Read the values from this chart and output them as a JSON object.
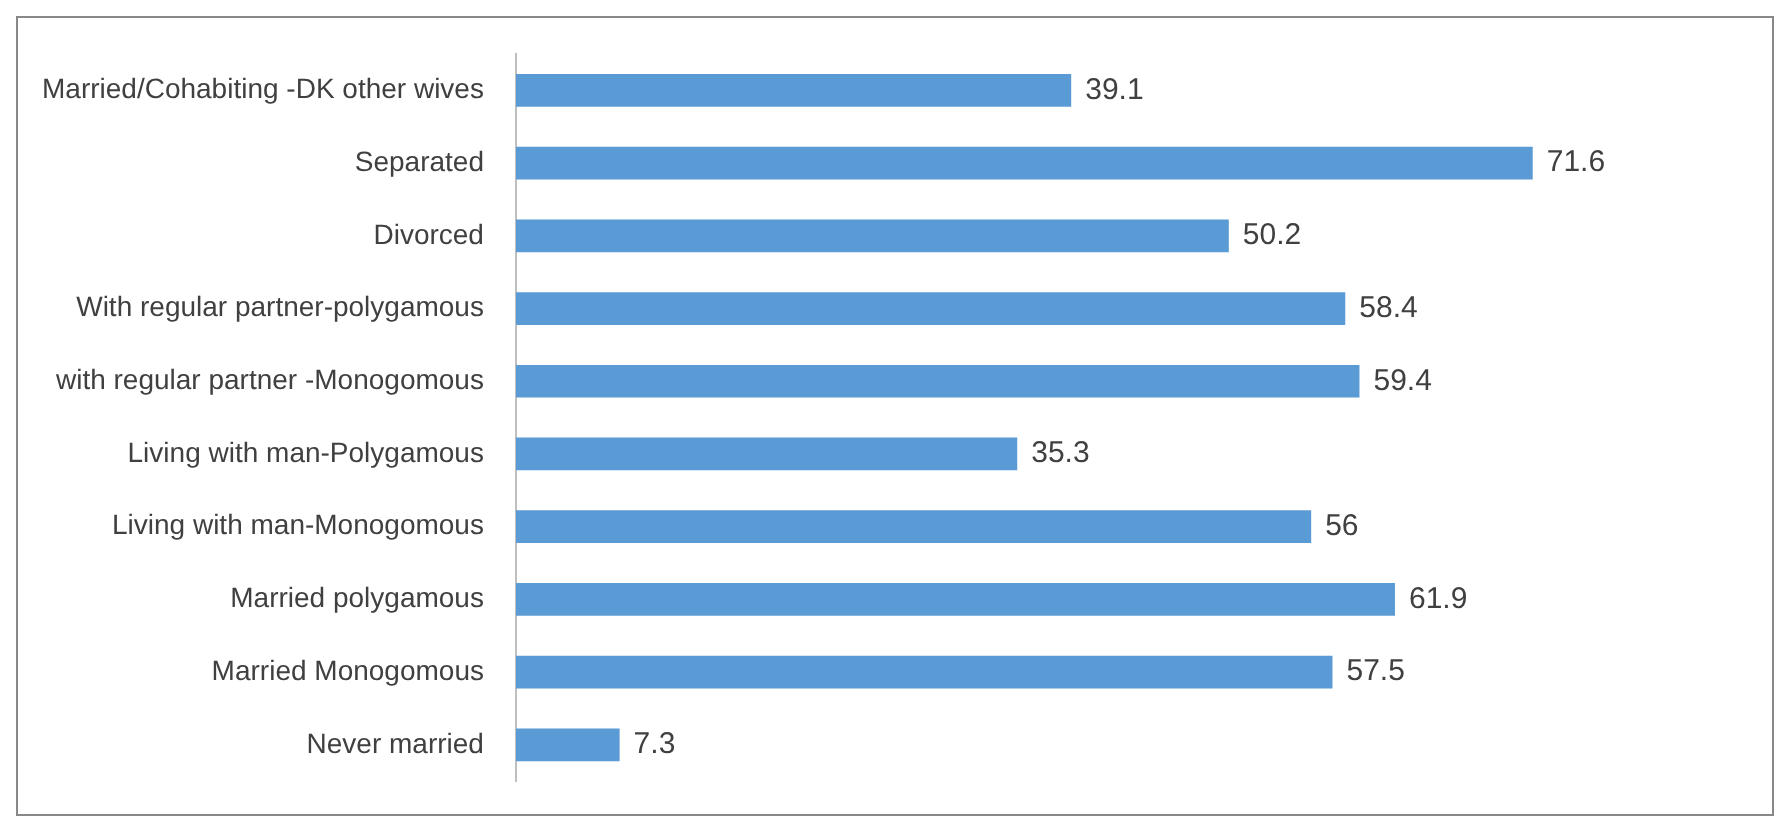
{
  "chart_data": {
    "type": "bar",
    "orientation": "horizontal",
    "categories": [
      "Married/Cohabiting -DK other wives",
      "Separated",
      "Divorced",
      "With regular partner-polygamous",
      "with regular partner -Monogomous",
      "Living with man-Polygamous",
      "Living with man-Monogomous",
      "Married polygamous",
      "Married Monogomous",
      "Never married"
    ],
    "values": [
      39.1,
      71.6,
      50.2,
      58.4,
      59.4,
      35.3,
      56,
      61.9,
      57.5,
      7.3
    ],
    "color": "#5b9bd5",
    "data_labels": true,
    "legend": false
  }
}
